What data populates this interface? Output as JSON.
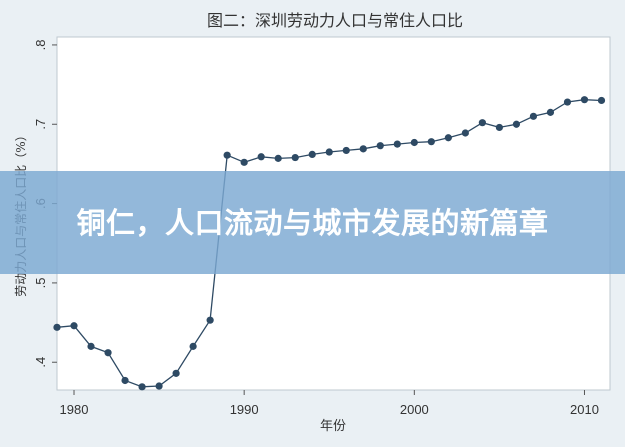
{
  "chart_data": {
    "type": "line",
    "title": "图二：深圳劳动力人口与常住人口比",
    "xlabel": "年份",
    "ylabel": "劳动力人口与常住人口比（%）",
    "xlim": [
      1979,
      2011.5
    ],
    "ylim": [
      0.365,
      0.81
    ],
    "xticks": [
      1980,
      1990,
      2000,
      2010
    ],
    "xtick_labels": [
      "1980",
      "1990",
      "2000",
      "2010"
    ],
    "yticks": [
      0.4,
      0.5,
      0.6,
      0.7,
      0.8
    ],
    "ytick_labels": [
      ".4",
      ".5",
      ".6",
      ".7",
      ".8"
    ],
    "grid": false,
    "series": [
      {
        "x": [
          1979,
          1980,
          1981,
          1982,
          1983,
          1984,
          1985,
          1986,
          1987,
          1988,
          1989,
          1990,
          1991,
          1992,
          1993,
          1994,
          1995,
          1996,
          1997,
          1998,
          1999,
          2000,
          2001,
          2002,
          2003,
          2004,
          2005,
          2006,
          2007,
          2008,
          2009,
          2010,
          2011
        ],
        "values": [
          0.444,
          0.446,
          0.42,
          0.412,
          0.377,
          0.369,
          0.37,
          0.386,
          0.42,
          0.453,
          0.661,
          0.652,
          0.659,
          0.657,
          0.658,
          0.662,
          0.665,
          0.667,
          0.669,
          0.673,
          0.675,
          0.677,
          0.678,
          0.683,
          0.689,
          0.702,
          0.696,
          0.7,
          0.71,
          0.715,
          0.728,
          0.731,
          0.73
        ],
        "color": "#2e4a64"
      }
    ]
  },
  "overlay": {
    "headline": "铜仁，人口流动与城市发展的新篇章"
  }
}
